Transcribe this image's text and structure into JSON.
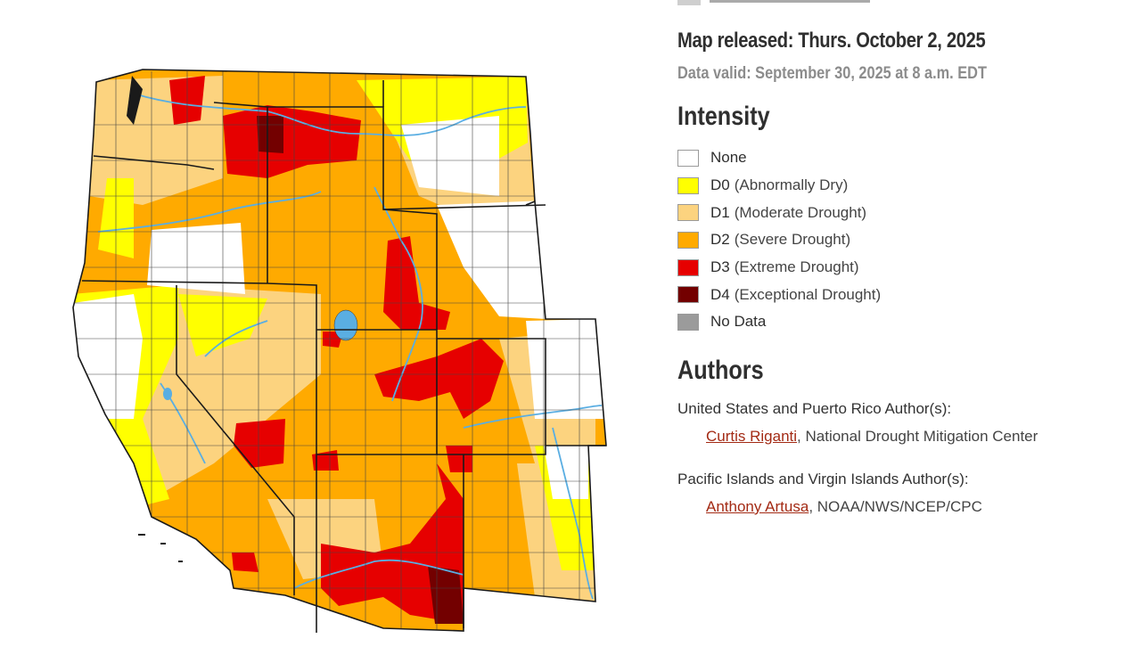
{
  "map": {
    "colors": {
      "none": "#ffffff",
      "d0": "#ffff00",
      "d1": "#fcd37f",
      "d2": "#ffaa00",
      "d3": "#e60000",
      "d4": "#730000",
      "no_data": "#9b9b9b",
      "water": "#5aaee2",
      "borders": "#333333"
    }
  },
  "header": {
    "released": "Map released: Thurs. October 2, 2025",
    "valid": "Data valid: September 30, 2025 at 8 a.m. EDT"
  },
  "intensity": {
    "title": "Intensity",
    "items": [
      {
        "code": "None",
        "desc": "",
        "color": "#ffffff"
      },
      {
        "code": "D0",
        "desc": "(Abnormally Dry)",
        "color": "#ffff00"
      },
      {
        "code": "D1",
        "desc": "(Moderate Drought)",
        "color": "#fcd37f"
      },
      {
        "code": "D2",
        "desc": "(Severe Drought)",
        "color": "#ffaa00"
      },
      {
        "code": "D3",
        "desc": "(Extreme Drought)",
        "color": "#e60000"
      },
      {
        "code": "D4",
        "desc": "(Exceptional Drought)",
        "color": "#730000"
      },
      {
        "code": "No Data",
        "desc": "",
        "color": "#9b9b9b"
      }
    ]
  },
  "authors": {
    "title": "Authors",
    "groups": [
      {
        "label": "United States and Puerto Rico Author(s):",
        "name": "Curtis Riganti",
        "affiliation": ", National Drought Mitigation Center"
      },
      {
        "label": "Pacific Islands and Virgin Islands Author(s):",
        "name": "Anthony Artusa",
        "affiliation": ", NOAA/NWS/NCEP/CPC"
      }
    ]
  }
}
